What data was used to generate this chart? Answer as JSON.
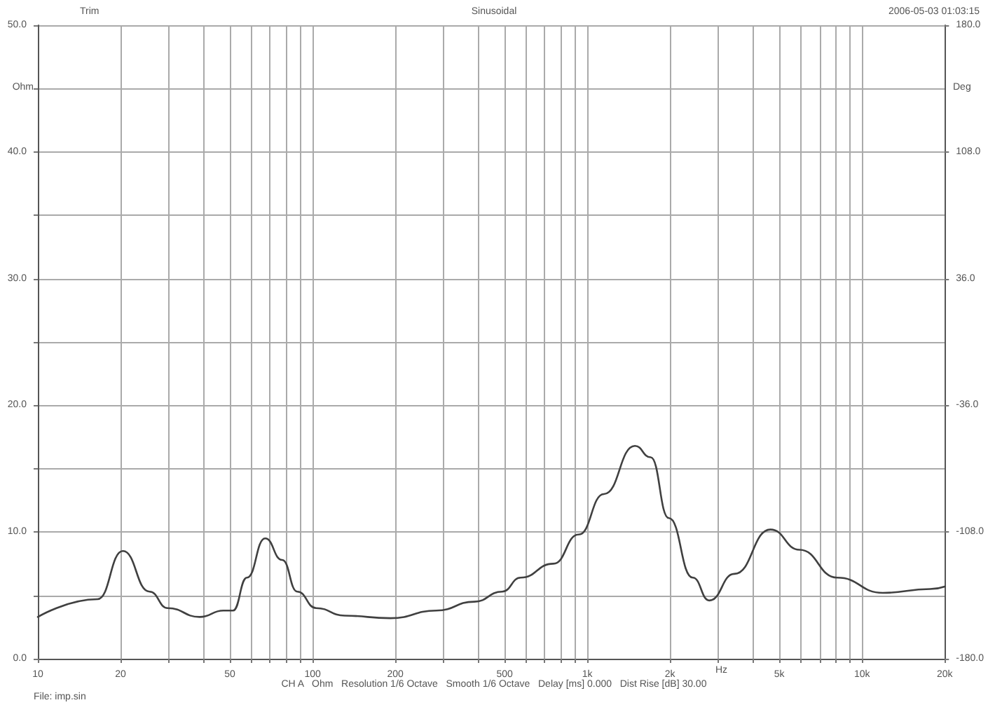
{
  "chart_data": {
    "type": "line",
    "title": "Sinusoidal",
    "xlabel": "Hz",
    "ylabel": "Ohm",
    "y2label": "Deg",
    "annotations": [
      "Trim",
      "2006-05-03 01:03:15",
      "CH A   Ohm   Resolution 1/6 Octave   Smooth 1/6 Octave   Delay [ms] 0.000   Dist Rise [dB] 30.00",
      "File: imp.sin"
    ],
    "log": "x",
    "grid": true,
    "marker": "none",
    "line_style": "solid",
    "xlim": [
      10,
      20000
    ],
    "xticks": [
      {
        "value": 10,
        "label": "10"
      },
      {
        "value": 20,
        "label": "20"
      },
      {
        "value": 30,
        "label": null
      },
      {
        "value": 40,
        "label": null
      },
      {
        "value": 50,
        "label": "50"
      },
      {
        "value": 60,
        "label": null
      },
      {
        "value": 70,
        "label": null
      },
      {
        "value": 80,
        "label": null
      },
      {
        "value": 90,
        "label": null
      },
      {
        "value": 100,
        "label": "100"
      },
      {
        "value": 200,
        "label": "200"
      },
      {
        "value": 300,
        "label": null
      },
      {
        "value": 400,
        "label": null
      },
      {
        "value": 500,
        "label": "500"
      },
      {
        "value": 600,
        "label": null
      },
      {
        "value": 700,
        "label": null
      },
      {
        "value": 800,
        "label": null
      },
      {
        "value": 900,
        "label": null
      },
      {
        "value": 1000,
        "label": "1k"
      },
      {
        "value": 2000,
        "label": "2k"
      },
      {
        "value": 3000,
        "label": null
      },
      {
        "value": 4000,
        "label": null
      },
      {
        "value": 5000,
        "label": "5k"
      },
      {
        "value": 6000,
        "label": null
      },
      {
        "value": 7000,
        "label": null
      },
      {
        "value": 8000,
        "label": null
      },
      {
        "value": 9000,
        "label": null
      },
      {
        "value": 10000,
        "label": "10k"
      },
      {
        "value": 20000,
        "label": "20k"
      }
    ],
    "ylim": [
      0,
      50
    ],
    "yticks": [
      {
        "value": 0,
        "label": "0.0"
      },
      {
        "value": 5,
        "label": null
      },
      {
        "value": 10,
        "label": "10.0"
      },
      {
        "value": 15,
        "label": null
      },
      {
        "value": 20,
        "label": "20.0"
      },
      {
        "value": 25,
        "label": null
      },
      {
        "value": 30,
        "label": "30.0"
      },
      {
        "value": 35,
        "label": null
      },
      {
        "value": 40,
        "label": "40.0"
      },
      {
        "value": 45,
        "label": null
      },
      {
        "value": 50,
        "label": "50.0"
      }
    ],
    "y2lim": [
      -180,
      180
    ],
    "y2ticks": [
      {
        "value": -180,
        "label": "-180.0"
      },
      {
        "value": -108,
        "label": "-108.0"
      },
      {
        "value": -36,
        "label": "-36.0"
      },
      {
        "value": 36,
        "label": "36.0"
      },
      {
        "value": 108,
        "label": "108.0"
      },
      {
        "value": 180,
        "label": "180.0"
      }
    ],
    "series": [
      {
        "color": "#404040",
        "x": [
          10,
          16.5,
          20.4,
          25.5,
          29.7,
          38.8,
          47.4,
          51.3,
          57.7,
          67.2,
          77.5,
          88,
          103,
          131,
          192,
          282,
          388,
          490,
          572,
          752,
          930,
          1150,
          1490,
          1700,
          1980,
          2420,
          2780,
          3430,
          4640,
          5920,
          8120,
          11900,
          17700,
          20000
        ],
        "values": [
          3.3,
          4.7,
          8.5,
          5.3,
          4.0,
          3.3,
          3.8,
          3.8,
          6.4,
          9.5,
          7.8,
          5.3,
          4.0,
          3.4,
          3.2,
          3.8,
          4.5,
          5.3,
          6.4,
          7.5,
          9.8,
          13.0,
          16.8,
          15.9,
          11.1,
          6.4,
          4.6,
          6.7,
          10.2,
          8.6,
          6.4,
          5.2,
          5.5,
          5.7
        ]
      }
    ]
  }
}
